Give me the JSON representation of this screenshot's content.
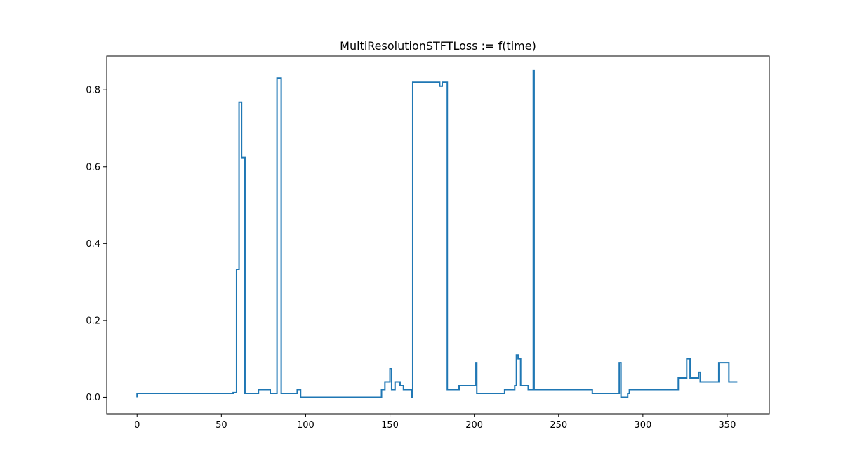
{
  "chart_data": {
    "type": "line",
    "drawstyle": "steps-post",
    "title": "MultiResolutionSTFTLoss := f(time)",
    "xlabel": "",
    "ylabel": "",
    "xlim": [
      -18,
      375
    ],
    "ylim": [
      -0.043,
      0.888
    ],
    "xticks": [
      0,
      50,
      100,
      150,
      200,
      250,
      300,
      350
    ],
    "yticks": [
      0.0,
      0.2,
      0.4,
      0.6,
      0.8
    ],
    "xtick_labels": [
      "0",
      "50",
      "100",
      "150",
      "200",
      "250",
      "300",
      "350"
    ],
    "ytick_labels": [
      "0.0",
      "0.2",
      "0.4",
      "0.6",
      "0.8"
    ],
    "grid": false,
    "legend": "none",
    "series": [
      {
        "color": "#1f77b4",
        "x": [
          0,
          0,
          57,
          59,
          60.5,
          62,
          64,
          72,
          79,
          83,
          85.5,
          95,
          97,
          145,
          146,
          147,
          150,
          151,
          153,
          156,
          158,
          163,
          163.5,
          178,
          179.5,
          181,
          184,
          191,
          201,
          201.5,
          218,
          224,
          225,
          226,
          227.5,
          232,
          235,
          235.5,
          236,
          270,
          286,
          287,
          288,
          291,
          292,
          321,
          326,
          328,
          333,
          334,
          345,
          351,
          356
        ],
        "y": [
          0.0,
          0.01,
          0.012,
          0.333,
          0.768,
          0.624,
          0.01,
          0.02,
          0.01,
          0.831,
          0.01,
          0.02,
          0.0,
          0.02,
          0.02,
          0.04,
          0.075,
          0.02,
          0.04,
          0.03,
          0.02,
          0.0,
          0.82,
          0.82,
          0.81,
          0.82,
          0.02,
          0.03,
          0.09,
          0.01,
          0.02,
          0.03,
          0.11,
          0.1,
          0.03,
          0.02,
          0.85,
          0.02,
          0.02,
          0.01,
          0.09,
          0.0,
          0.0,
          0.01,
          0.02,
          0.05,
          0.1,
          0.05,
          0.065,
          0.04,
          0.09,
          0.04,
          0.04
        ]
      }
    ]
  }
}
